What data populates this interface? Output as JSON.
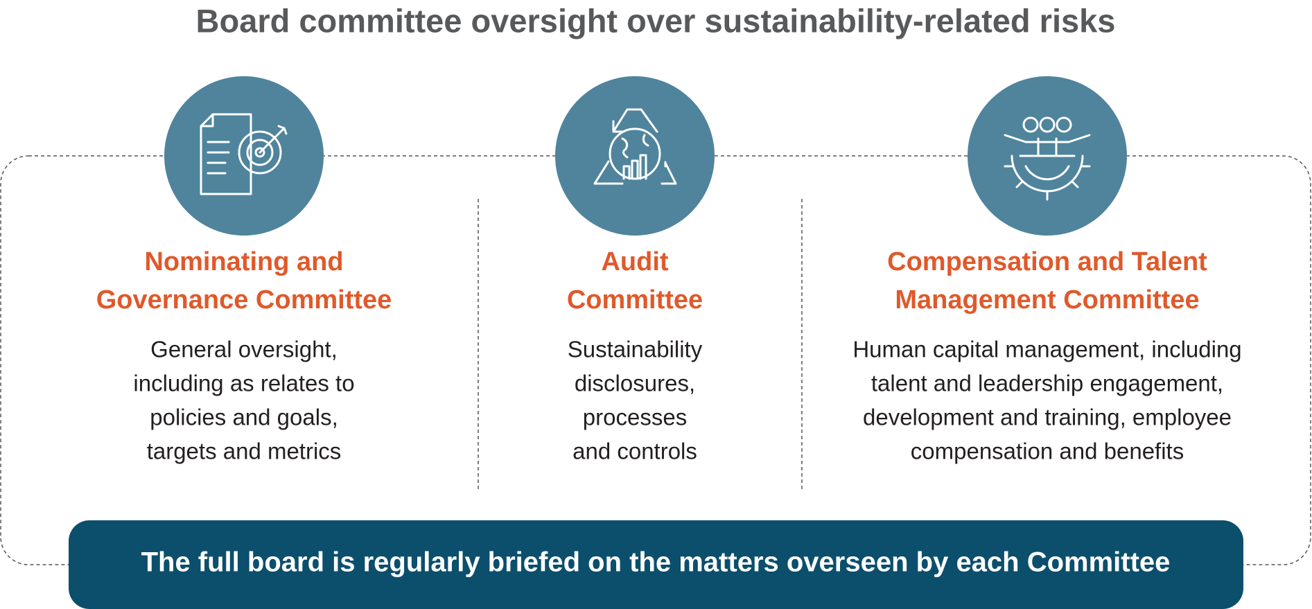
{
  "title": "Board committee oversight over sustainability-related risks",
  "committees": [
    {
      "name_lines": [
        "Nominating and",
        "Governance Committee"
      ],
      "description_lines": [
        "General oversight,",
        "including as relates to",
        "policies and goals,",
        "targets and metrics"
      ]
    },
    {
      "name_lines": [
        "Audit",
        "Committee"
      ],
      "description_lines": [
        "Sustainability",
        "disclosures,",
        "processes",
        "and controls"
      ]
    },
    {
      "name_lines": [
        "Compensation and Talent",
        "Management Committee"
      ],
      "description_lines": [
        "Human capital management, including",
        "talent and leadership engagement,",
        "development and training, employee",
        "compensation and benefits"
      ]
    }
  ],
  "footer": "The full board is regularly briefed on the matters overseen by each Committee"
}
